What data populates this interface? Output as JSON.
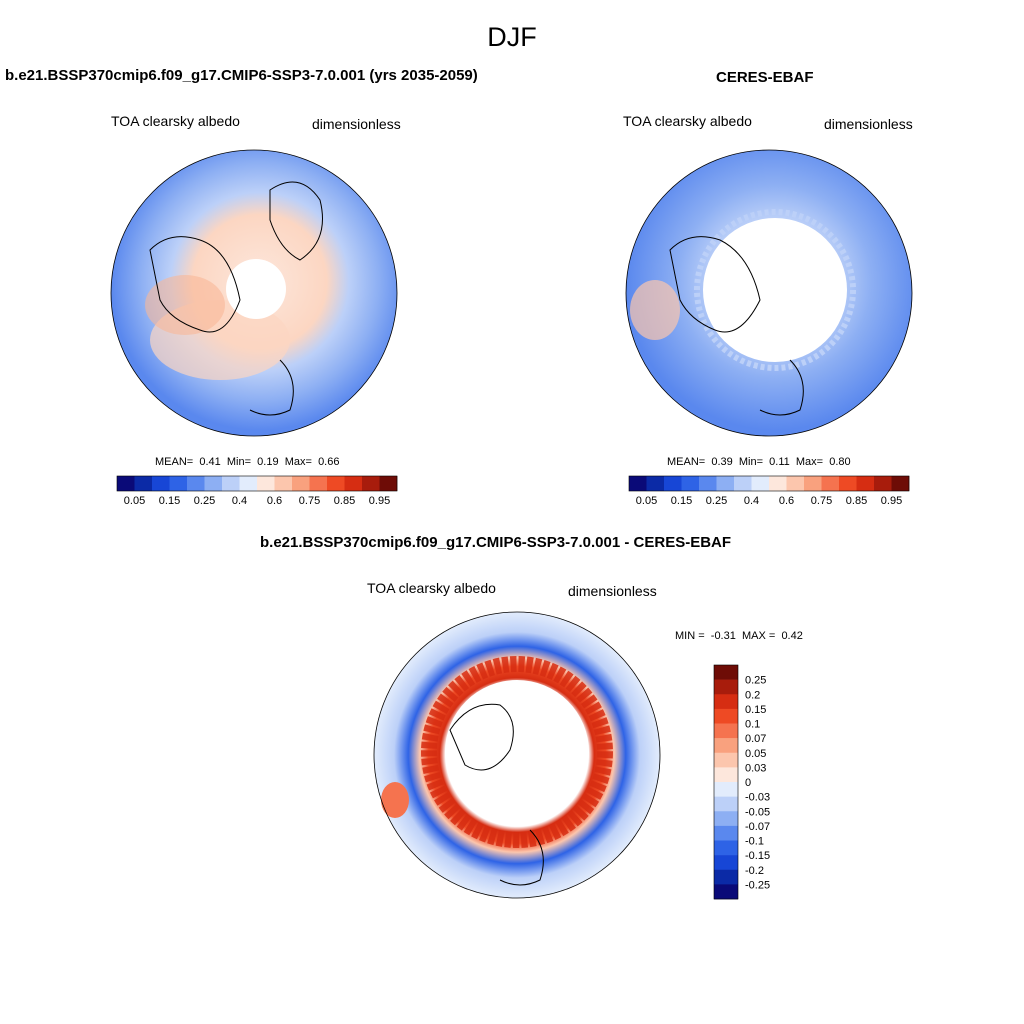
{
  "figure": {
    "title": "DJF"
  },
  "colors": {
    "abs_levels": [
      "#0a0a78",
      "#0b2aa6",
      "#1746d6",
      "#2e63e6",
      "#5a88ee",
      "#8daff3",
      "#bcd0f8",
      "#e2ecfc",
      "#fde7dc",
      "#fcc6ad",
      "#f9a17e",
      "#f5734f",
      "#ee4a24",
      "#d62d12",
      "#a81c0c",
      "#6e0c06"
    ],
    "diff_levels": [
      "#0a0a78",
      "#0b2aa6",
      "#1746d6",
      "#2e63e6",
      "#5a88ee",
      "#8daff3",
      "#bcd0f8",
      "#e2ecfc",
      "#fde7dc",
      "#fcc6ad",
      "#f9a17e",
      "#f5734f",
      "#ee4a24",
      "#d62d12",
      "#a81c0c",
      "#6e0c06"
    ],
    "land_outline": "#000000"
  },
  "chart_data": [
    {
      "type": "heatmap",
      "projection": "north-polar-stereographic",
      "title": "b.e21.BSSP370cmip6.f09_g17.CMIP6-SSP3-7.0.001 (yrs 2035-2059)",
      "variable": "TOA clearsky albedo",
      "units": "dimensionless",
      "stats": {
        "mean_label": "MEAN=",
        "mean": "0.41",
        "min_label": "Min=",
        "min": "0.19",
        "max_label": "Max=",
        "max": "0.66"
      },
      "colorbar": {
        "orientation": "horizontal",
        "tick_labels": [
          "0.05",
          "0.15",
          "0.25",
          "0.4",
          "0.6",
          "0.75",
          "0.85",
          "0.95"
        ]
      }
    },
    {
      "type": "heatmap",
      "projection": "north-polar-stereographic",
      "title": "CERES-EBAF",
      "variable": "TOA clearsky albedo",
      "units": "dimensionless",
      "stats": {
        "mean_label": "MEAN=",
        "mean": "0.39",
        "min_label": "Min=",
        "min": "0.11",
        "max_label": "Max=",
        "max": "0.80"
      },
      "colorbar": {
        "orientation": "horizontal",
        "tick_labels": [
          "0.05",
          "0.15",
          "0.25",
          "0.4",
          "0.6",
          "0.75",
          "0.85",
          "0.95"
        ]
      }
    },
    {
      "type": "heatmap",
      "projection": "north-polar-stereographic",
      "title": "b.e21.BSSP370cmip6.f09_g17.CMIP6-SSP3-7.0.001 - CERES-EBAF",
      "variable": "TOA clearsky albedo",
      "units": "dimensionless",
      "stats": {
        "min_label": "MIN =",
        "min": "-0.31",
        "max_label": "MAX =",
        "max": "0.42"
      },
      "colorbar": {
        "orientation": "vertical",
        "tick_labels": [
          "0.25",
          "0.2",
          "0.15",
          "0.1",
          "0.07",
          "0.05",
          "0.03",
          "0",
          "-0.03",
          "-0.05",
          "-0.07",
          "-0.1",
          "-0.15",
          "-0.2",
          "-0.25"
        ]
      }
    }
  ]
}
